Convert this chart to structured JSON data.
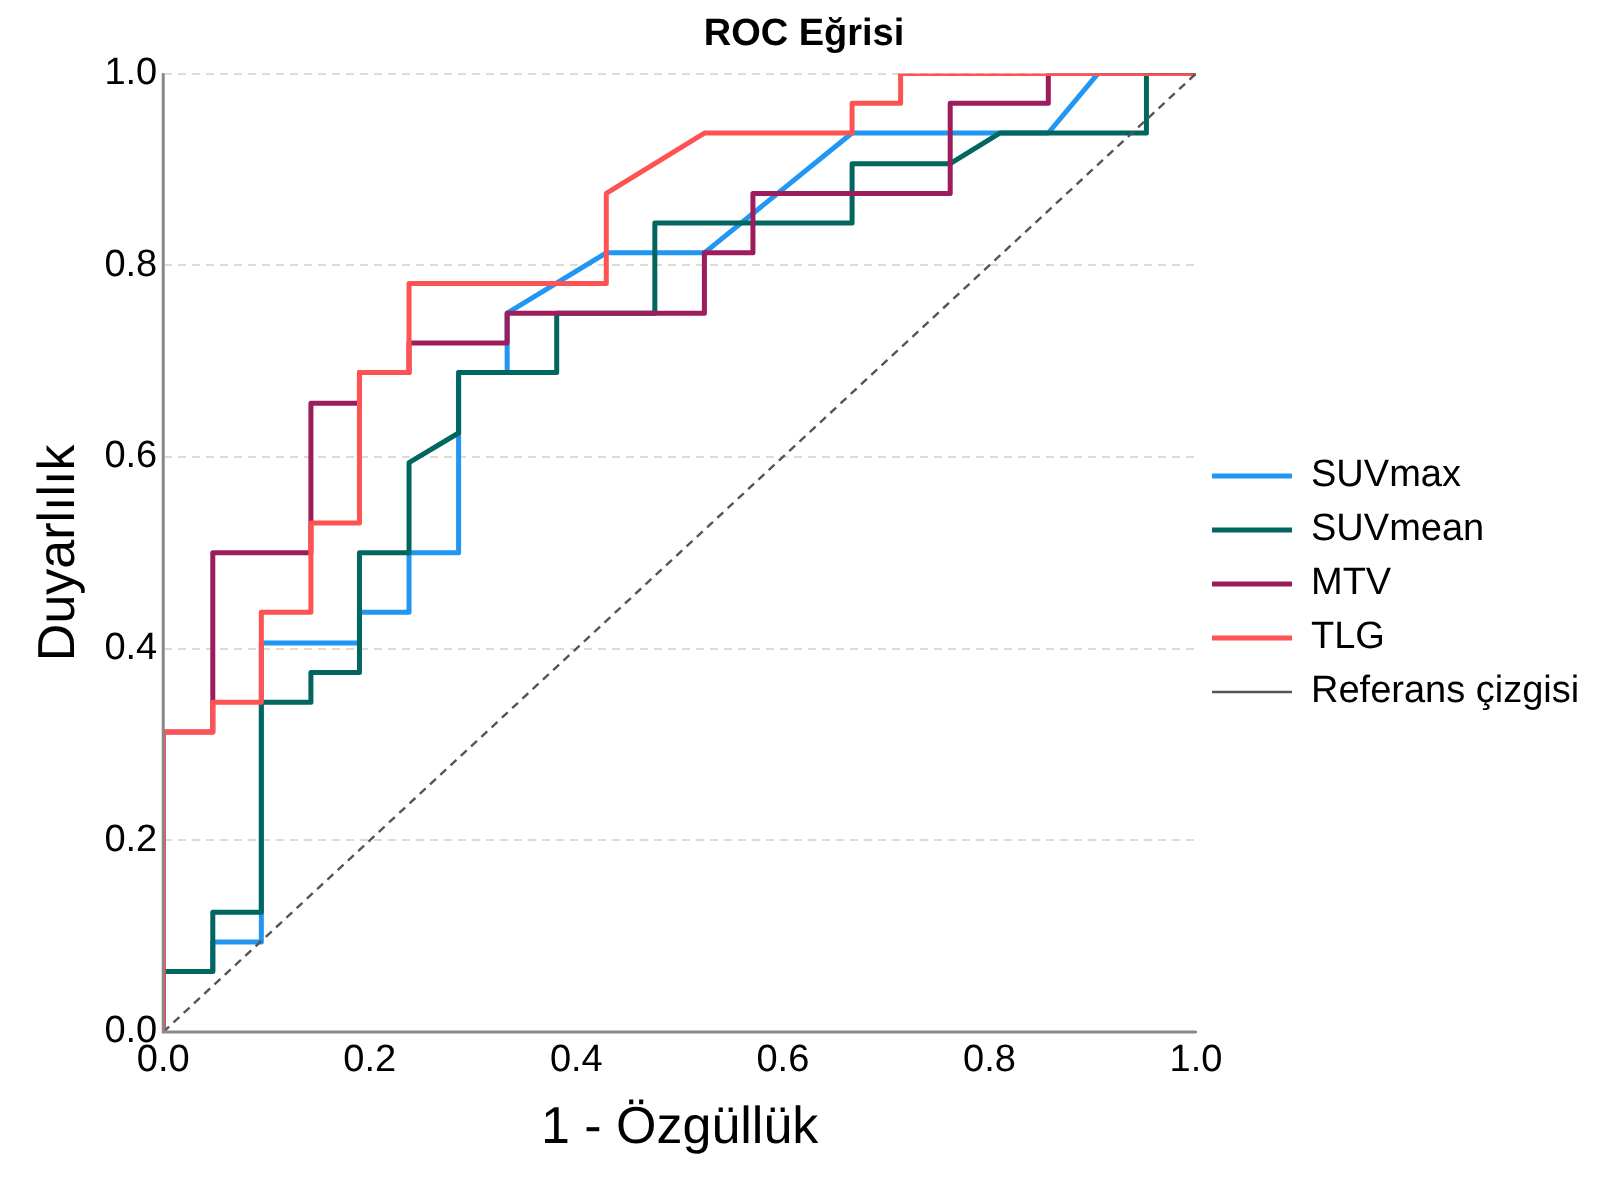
{
  "chart_data": {
    "type": "line",
    "title": "ROC Eğrisi",
    "xlabel": "1 - Özgüllük",
    "ylabel": "Duyarlılık",
    "xlim": [
      0,
      1
    ],
    "ylim": [
      0,
      1
    ],
    "xticks": [
      {
        "value": 0,
        "label": "0.0"
      },
      {
        "value": 0.2,
        "label": "0.2"
      },
      {
        "value": 0.4,
        "label": "0.4"
      },
      {
        "value": 0.6,
        "label": "0.6"
      },
      {
        "value": 0.8,
        "label": "0.8"
      },
      {
        "value": 1,
        "label": "1.0"
      }
    ],
    "yticks": [
      {
        "value": 0,
        "label": "0.0"
      },
      {
        "value": 0.2,
        "label": "0.2"
      },
      {
        "value": 0.4,
        "label": "0.4"
      },
      {
        "value": 0.6,
        "label": "0.6"
      },
      {
        "value": 0.8,
        "label": "0.8"
      },
      {
        "value": 1,
        "label": "1.0"
      }
    ],
    "grid": "y",
    "legend": "right",
    "marker": "none",
    "series": [
      {
        "name": "SUVmax",
        "color": "#2196f3",
        "line_style": "solid",
        "x": [
          0.048,
          0.048,
          0.095,
          0.095,
          0.19,
          0.19,
          0.238,
          0.238,
          0.286,
          0.286,
          0.333,
          0.333,
          0.429,
          0.524,
          0.667,
          0.857,
          0.905,
          1
        ],
        "values": [
          0.063,
          0.094,
          0.094,
          0.406,
          0.406,
          0.438,
          0.438,
          0.5,
          0.5,
          0.688,
          0.688,
          0.75,
          0.813,
          0.813,
          0.938,
          0.938,
          1,
          1
        ]
      },
      {
        "name": "SUVmean",
        "color": "#00665f",
        "line_style": "solid",
        "x": [
          0,
          0,
          0.048,
          0.048,
          0.095,
          0.095,
          0.143,
          0.143,
          0.19,
          0.19,
          0.238,
          0.238,
          0.286,
          0.286,
          0.381,
          0.381,
          0.476,
          0.476,
          0.667,
          0.667,
          0.762,
          0.81,
          0.952,
          0.952,
          1
        ],
        "values": [
          0,
          0.063,
          0.063,
          0.125,
          0.125,
          0.344,
          0.344,
          0.375,
          0.375,
          0.5,
          0.5,
          0.594,
          0.625,
          0.688,
          0.688,
          0.75,
          0.75,
          0.844,
          0.844,
          0.906,
          0.906,
          0.938,
          0.938,
          1,
          1
        ]
      },
      {
        "name": "MTV",
        "color": "#9c1c5c",
        "line_style": "solid",
        "x": [
          0,
          0,
          0.048,
          0.048,
          0.143,
          0.143,
          0.19,
          0.19,
          0.238,
          0.238,
          0.333,
          0.333,
          0.524,
          0.524,
          0.571,
          0.571,
          0.762,
          0.762,
          0.857,
          0.857,
          1
        ],
        "values": [
          0,
          0.313,
          0.313,
          0.5,
          0.5,
          0.656,
          0.656,
          0.688,
          0.688,
          0.719,
          0.719,
          0.75,
          0.75,
          0.813,
          0.813,
          0.875,
          0.875,
          0.969,
          0.969,
          1,
          1
        ]
      },
      {
        "name": "TLG",
        "color": "#ff5252",
        "line_style": "solid",
        "x": [
          0,
          0,
          0.048,
          0.048,
          0.095,
          0.095,
          0.143,
          0.143,
          0.19,
          0.19,
          0.238,
          0.238,
          0.429,
          0.429,
          0.524,
          0.667,
          0.667,
          0.714,
          0.714,
          1
        ],
        "values": [
          0,
          0.313,
          0.313,
          0.344,
          0.344,
          0.438,
          0.438,
          0.531,
          0.531,
          0.688,
          0.688,
          0.781,
          0.781,
          0.875,
          0.938,
          0.938,
          0.969,
          0.969,
          1,
          1
        ]
      },
      {
        "name": "Referans çizgisi",
        "color": "#555555",
        "line_style": "dashed",
        "x": [
          0,
          1
        ],
        "values": [
          0,
          1
        ]
      }
    ]
  }
}
